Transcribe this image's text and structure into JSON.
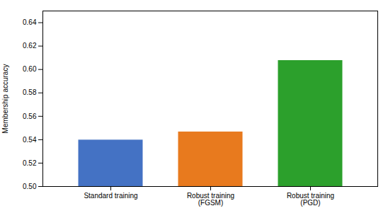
{
  "chart_data": {
    "type": "bar",
    "categories": [
      "Standard training",
      "Robust training\n(FGSM)",
      "Robust training\n(PGD)"
    ],
    "values": [
      0.54,
      0.547,
      0.608
    ],
    "colors": [
      "#4472c4",
      "#e87a1e",
      "#2ca02c"
    ],
    "ylabel": "Membership accuracy",
    "ylim": [
      0.5,
      0.65
    ],
    "yticks": [
      {
        "value": 0.5,
        "label": "0.50"
      },
      0.52,
      0.54,
      0.56,
      0.58,
      {
        "value": 0.6,
        "label": "0.60"
      },
      0.62,
      0.64
    ]
  }
}
